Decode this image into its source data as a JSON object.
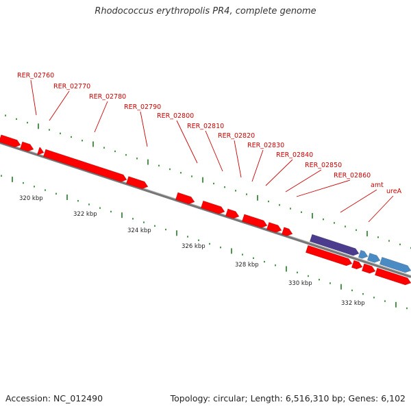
{
  "title": "Rhodococcus erythropolis PR4, complete genome",
  "footer": {
    "accession": "Accession: NC_012490",
    "summary": "Topology: circular; Length: 6,516,310 bp; Genes: 6,102"
  },
  "colors": {
    "gene_red": "#ff0000",
    "gene_purple": "#4b3c8e",
    "gene_blue": "#4a8bc4",
    "label_red": "#cc0000",
    "tick_green": "#1e7a1e",
    "backbone_grey": "#777777"
  },
  "gene_labels": [
    "RER_02760",
    "RER_02770",
    "RER_02780",
    "RER_02790",
    "RER_02800",
    "RER_02810",
    "RER_02820",
    "RER_02830",
    "RER_02840",
    "RER_02850",
    "RER_02860",
    "amt",
    "ureA"
  ],
  "kbp_labels": [
    "320 kbp",
    "322 kbp",
    "324 kbp",
    "326 kbp",
    "328 kbp",
    "330 kbp",
    "332 kbp"
  ]
}
